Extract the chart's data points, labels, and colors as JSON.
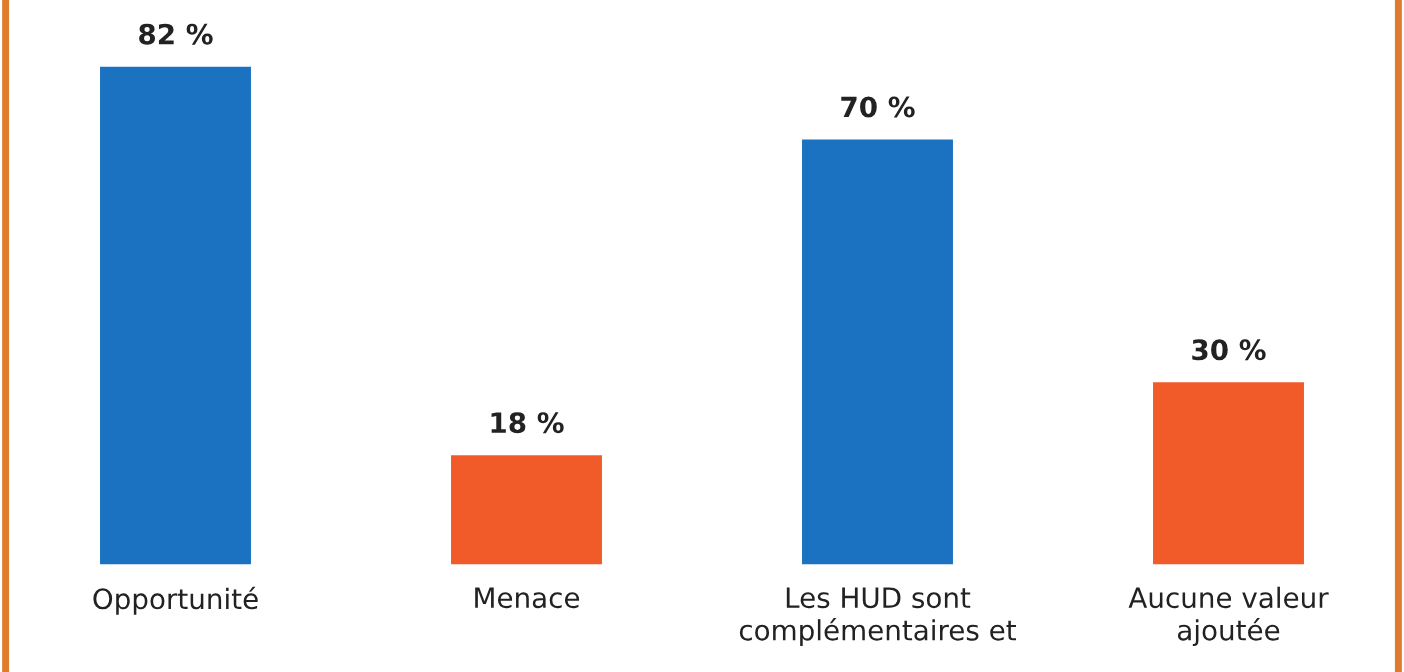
{
  "chart_data": {
    "type": "bar",
    "categories": [
      "Opportunité",
      "Menace",
      "Les HUD sont\ncomplémentaires et",
      "Aucune valeur\najoutée"
    ],
    "values": [
      82,
      18,
      70,
      30
    ],
    "colors": [
      "#1a72c0",
      "#f15a29",
      "#1a72c0",
      "#f15a29"
    ],
    "value_labels": [
      "82 %",
      "18 %",
      "70 %",
      "30 %"
    ],
    "tick_labels": "x",
    "grid": false,
    "legend": false
  }
}
